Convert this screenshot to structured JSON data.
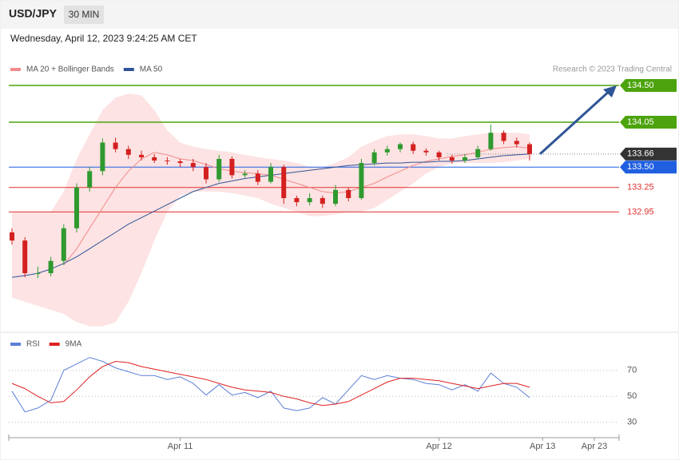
{
  "header": {
    "symbol": "USD/JPY",
    "interval": "30 MIN",
    "timestamp": "Wednesday, April 12, 2023 9:24:25 AM CET"
  },
  "credit": "Research © 2023 Trading Central",
  "chart_data": [
    {
      "type": "candlestick",
      "categories": [
        null,
        null,
        null,
        null,
        null,
        null,
        null,
        null,
        null,
        null,
        null,
        null,
        null,
        "Apr 11",
        null,
        null,
        null,
        null,
        null,
        null,
        null,
        null,
        null,
        null,
        null,
        null,
        null,
        null,
        null,
        null,
        null,
        null,
        null,
        "Apr 12",
        null,
        null,
        null,
        null,
        null,
        null,
        null,
        "Apr 13",
        null,
        null,
        null,
        "Apr 23",
        null
      ],
      "ohlc": [
        [
          132.7,
          132.75,
          132.55,
          132.6
        ],
        [
          132.6,
          132.64,
          132.15,
          132.2
        ],
        [
          132.2,
          132.28,
          132.14,
          132.2
        ],
        [
          132.2,
          132.4,
          132.16,
          132.35
        ],
        [
          132.35,
          132.8,
          132.3,
          132.75
        ],
        [
          132.75,
          133.3,
          132.7,
          133.25
        ],
        [
          133.25,
          133.5,
          133.2,
          133.45
        ],
        [
          133.45,
          133.85,
          133.4,
          133.8
        ],
        [
          133.8,
          133.86,
          133.68,
          133.72
        ],
        [
          133.72,
          133.76,
          133.6,
          133.65
        ],
        [
          133.65,
          133.7,
          133.58,
          133.62
        ],
        [
          133.62,
          133.66,
          133.55,
          133.58
        ],
        [
          133.58,
          133.62,
          133.53,
          133.57
        ],
        [
          133.57,
          133.6,
          133.5,
          133.55
        ],
        [
          133.55,
          133.6,
          133.45,
          133.5
        ],
        [
          133.5,
          133.55,
          133.3,
          133.35
        ],
        [
          133.35,
          133.65,
          133.32,
          133.6
        ],
        [
          133.6,
          133.63,
          133.36,
          133.4
        ],
        [
          133.4,
          133.46,
          133.37,
          133.42
        ],
        [
          133.42,
          133.46,
          133.28,
          133.32
        ],
        [
          133.32,
          133.55,
          133.3,
          133.5
        ],
        [
          133.5,
          133.53,
          133.05,
          133.12
        ],
        [
          133.12,
          133.15,
          133.02,
          133.07
        ],
        [
          133.07,
          133.18,
          133.03,
          133.12
        ],
        [
          133.12,
          133.15,
          133.0,
          133.05
        ],
        [
          133.05,
          133.28,
          133.02,
          133.22
        ],
        [
          133.22,
          133.25,
          133.08,
          133.12
        ],
        [
          133.12,
          133.6,
          133.1,
          133.55
        ],
        [
          133.55,
          133.72,
          133.52,
          133.68
        ],
        [
          133.68,
          133.76,
          133.64,
          133.72
        ],
        [
          133.72,
          133.8,
          133.68,
          133.78
        ],
        [
          133.78,
          133.81,
          133.66,
          133.7
        ],
        [
          133.7,
          133.73,
          133.64,
          133.68
        ],
        [
          133.68,
          133.7,
          133.58,
          133.62
        ],
        [
          133.62,
          133.65,
          133.54,
          133.58
        ],
        [
          133.58,
          133.66,
          133.55,
          133.62
        ],
        [
          133.62,
          133.76,
          133.6,
          133.72
        ],
        [
          133.72,
          134.02,
          133.7,
          133.92
        ],
        [
          133.92,
          133.95,
          133.78,
          133.82
        ],
        [
          133.82,
          133.86,
          133.74,
          133.78
        ],
        [
          133.78,
          133.8,
          133.58,
          133.66
        ],
        null,
        null,
        null,
        null,
        null,
        null
      ],
      "up_color": "#2f9a2f",
      "down_color": "#d42020",
      "series": [
        {
          "name": "MA 20 + Bollinger Bands",
          "color": "#f28b8b",
          "values": [
            null,
            null,
            null,
            null,
            132.3,
            132.5,
            132.75,
            133.0,
            133.25,
            133.45,
            133.6,
            133.68,
            133.65,
            133.6,
            133.58,
            133.53,
            133.48,
            133.45,
            133.43,
            133.42,
            133.4,
            133.35,
            133.3,
            133.25,
            133.2,
            133.18,
            133.2,
            133.25,
            133.3,
            133.38,
            133.45,
            133.52,
            133.57,
            133.6,
            133.63,
            133.65,
            133.68,
            133.72,
            133.74,
            133.75,
            133.73,
            null,
            null,
            null,
            null,
            null,
            null
          ],
          "band_color": "#fde3e3",
          "upper": [
            132.95,
            132.95,
            132.95,
            132.95,
            133.2,
            133.6,
            133.9,
            134.2,
            134.35,
            134.4,
            134.38,
            134.2,
            133.95,
            133.8,
            133.75,
            133.72,
            133.7,
            133.68,
            133.65,
            133.62,
            133.6,
            133.58,
            133.55,
            133.5,
            133.5,
            133.55,
            133.62,
            133.75,
            133.82,
            133.88,
            133.9,
            133.9,
            133.88,
            133.85,
            133.85,
            133.88,
            133.9,
            133.92,
            133.92,
            133.92,
            133.9,
            null,
            null,
            null,
            null,
            null,
            null
          ],
          "lower": [
            131.9,
            131.85,
            131.8,
            131.75,
            131.7,
            131.6,
            131.55,
            131.55,
            131.6,
            131.85,
            132.2,
            132.6,
            132.95,
            133.15,
            133.2,
            133.2,
            133.2,
            133.18,
            133.15,
            133.12,
            133.05,
            133.0,
            132.95,
            132.9,
            132.9,
            132.92,
            132.95,
            132.95,
            133.0,
            133.1,
            133.2,
            133.3,
            133.42,
            133.5,
            133.55,
            133.55,
            133.55,
            133.55,
            133.56,
            133.58,
            133.6,
            null,
            null,
            null,
            null,
            null,
            null
          ]
        },
        {
          "name": "MA 50",
          "color": "#2f5597",
          "values": [
            132.15,
            132.17,
            132.2,
            132.25,
            132.32,
            132.4,
            132.5,
            132.6,
            132.7,
            132.8,
            132.88,
            132.96,
            133.04,
            133.12,
            133.2,
            133.25,
            133.3,
            133.33,
            133.36,
            133.38,
            133.4,
            133.42,
            133.44,
            133.46,
            133.48,
            133.5,
            133.52,
            133.53,
            133.54,
            133.55,
            133.55,
            133.56,
            133.56,
            133.57,
            133.57,
            133.58,
            133.6,
            133.62,
            133.64,
            133.65,
            133.66,
            null,
            null,
            null,
            null,
            null,
            null
          ]
        }
      ],
      "levels": [
        {
          "value": 134.5,
          "label": "134.50",
          "color": "#4ca30d",
          "tag": true
        },
        {
          "value": 134.05,
          "label": "134.05",
          "color": "#4ca30d",
          "tag": true
        },
        {
          "value": 133.66,
          "label": "133.66",
          "color": "#333333",
          "tag": true
        },
        {
          "value": 133.5,
          "label": "133.50",
          "color": "#1f5fe0",
          "tag": true
        },
        {
          "value": 133.25,
          "label": "133.25",
          "color": "#e03030",
          "tag": false
        },
        {
          "value": 132.95,
          "label": "132.95",
          "color": "#e03030",
          "tag": false
        }
      ],
      "ylim": [
        131.5,
        134.95
      ]
    },
    {
      "type": "line",
      "series": [
        {
          "name": "RSI",
          "color": "#5b7fd6",
          "values": [
            54,
            38,
            41,
            47,
            70,
            75,
            80,
            77,
            72,
            69,
            66,
            66,
            63,
            65,
            60,
            51,
            59,
            51,
            53,
            49,
            54,
            41,
            39,
            41,
            49,
            44,
            55,
            66,
            63,
            66,
            64,
            63,
            60,
            59,
            55,
            59,
            54,
            68,
            60,
            57,
            49,
            null,
            null,
            null,
            null,
            null,
            null
          ]
        },
        {
          "name": "9MA",
          "color": "#e02020",
          "values": [
            60,
            56,
            50,
            45,
            46,
            55,
            65,
            73,
            77,
            76,
            73,
            71,
            69,
            67,
            65,
            63,
            60,
            57,
            55,
            54,
            53,
            50,
            48,
            45,
            43,
            44,
            46,
            51,
            56,
            61,
            64,
            64,
            63,
            62,
            60,
            58,
            56,
            58,
            60,
            60,
            57,
            null,
            null,
            null,
            null,
            null,
            null
          ]
        }
      ],
      "ylim": [
        20,
        97
      ],
      "yticks": [
        30,
        50,
        70
      ],
      "grid": true
    }
  ]
}
